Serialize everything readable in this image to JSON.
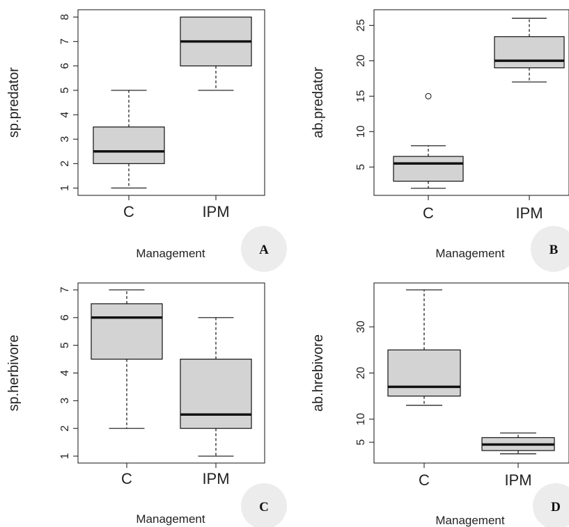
{
  "chart_data": [
    {
      "type": "box",
      "panel": "A",
      "xlabel": "Management",
      "ylabel": "sp.predator",
      "categories": [
        "C",
        "IPM"
      ],
      "yticks": [
        1,
        2,
        3,
        4,
        5,
        6,
        7,
        8
      ],
      "ylim": [
        0.7,
        8.3
      ],
      "boxes": [
        {
          "category": "C",
          "min": 1,
          "q1": 2,
          "median": 2.5,
          "q3": 3.5,
          "max": 5,
          "outliers": []
        },
        {
          "category": "IPM",
          "min": 5,
          "q1": 6,
          "median": 7,
          "q3": 8,
          "max": 8,
          "outliers": []
        }
      ]
    },
    {
      "type": "box",
      "panel": "B",
      "xlabel": "Management",
      "ylabel": "ab.predator",
      "categories": [
        "C",
        "IPM"
      ],
      "yticks": [
        5,
        10,
        15,
        20,
        25
      ],
      "ylim": [
        1,
        27.2
      ],
      "boxes": [
        {
          "category": "C",
          "min": 2,
          "q1": 3,
          "median": 5.5,
          "q3": 6.5,
          "max": 8,
          "outliers": [
            15
          ]
        },
        {
          "category": "IPM",
          "min": 17,
          "q1": 19,
          "median": 20,
          "q3": 23.4,
          "max": 26,
          "outliers": []
        }
      ]
    },
    {
      "type": "box",
      "panel": "C",
      "xlabel": "Management",
      "ylabel": "sp.herbivore",
      "categories": [
        "C",
        "IPM"
      ],
      "yticks": [
        1,
        2,
        3,
        4,
        5,
        6,
        7
      ],
      "ylim": [
        0.75,
        7.25
      ],
      "boxes": [
        {
          "category": "C",
          "min": 2,
          "q1": 4.5,
          "median": 6,
          "q3": 6.5,
          "max": 7,
          "outliers": []
        },
        {
          "category": "IPM",
          "min": 1,
          "q1": 2,
          "median": 2.5,
          "q3": 4.5,
          "max": 6,
          "outliers": []
        }
      ]
    },
    {
      "type": "box",
      "panel": "D",
      "xlabel": "Management",
      "ylabel": "ab.hrebivore",
      "categories": [
        "C",
        "IPM"
      ],
      "yticks": [
        5,
        10,
        20,
        30
      ],
      "ylim": [
        0.5,
        39.5
      ],
      "boxes": [
        {
          "category": "C",
          "min": 13,
          "q1": 15,
          "median": 17,
          "q3": 25,
          "max": 38,
          "outliers": []
        },
        {
          "category": "IPM",
          "min": 2.5,
          "q1": 3.2,
          "median": 4.5,
          "q3": 6,
          "max": 7,
          "outliers": []
        }
      ]
    }
  ],
  "colors": {
    "box_fill": "#d3d3d3",
    "line": "#111111",
    "badge_fill": "#ececec"
  }
}
